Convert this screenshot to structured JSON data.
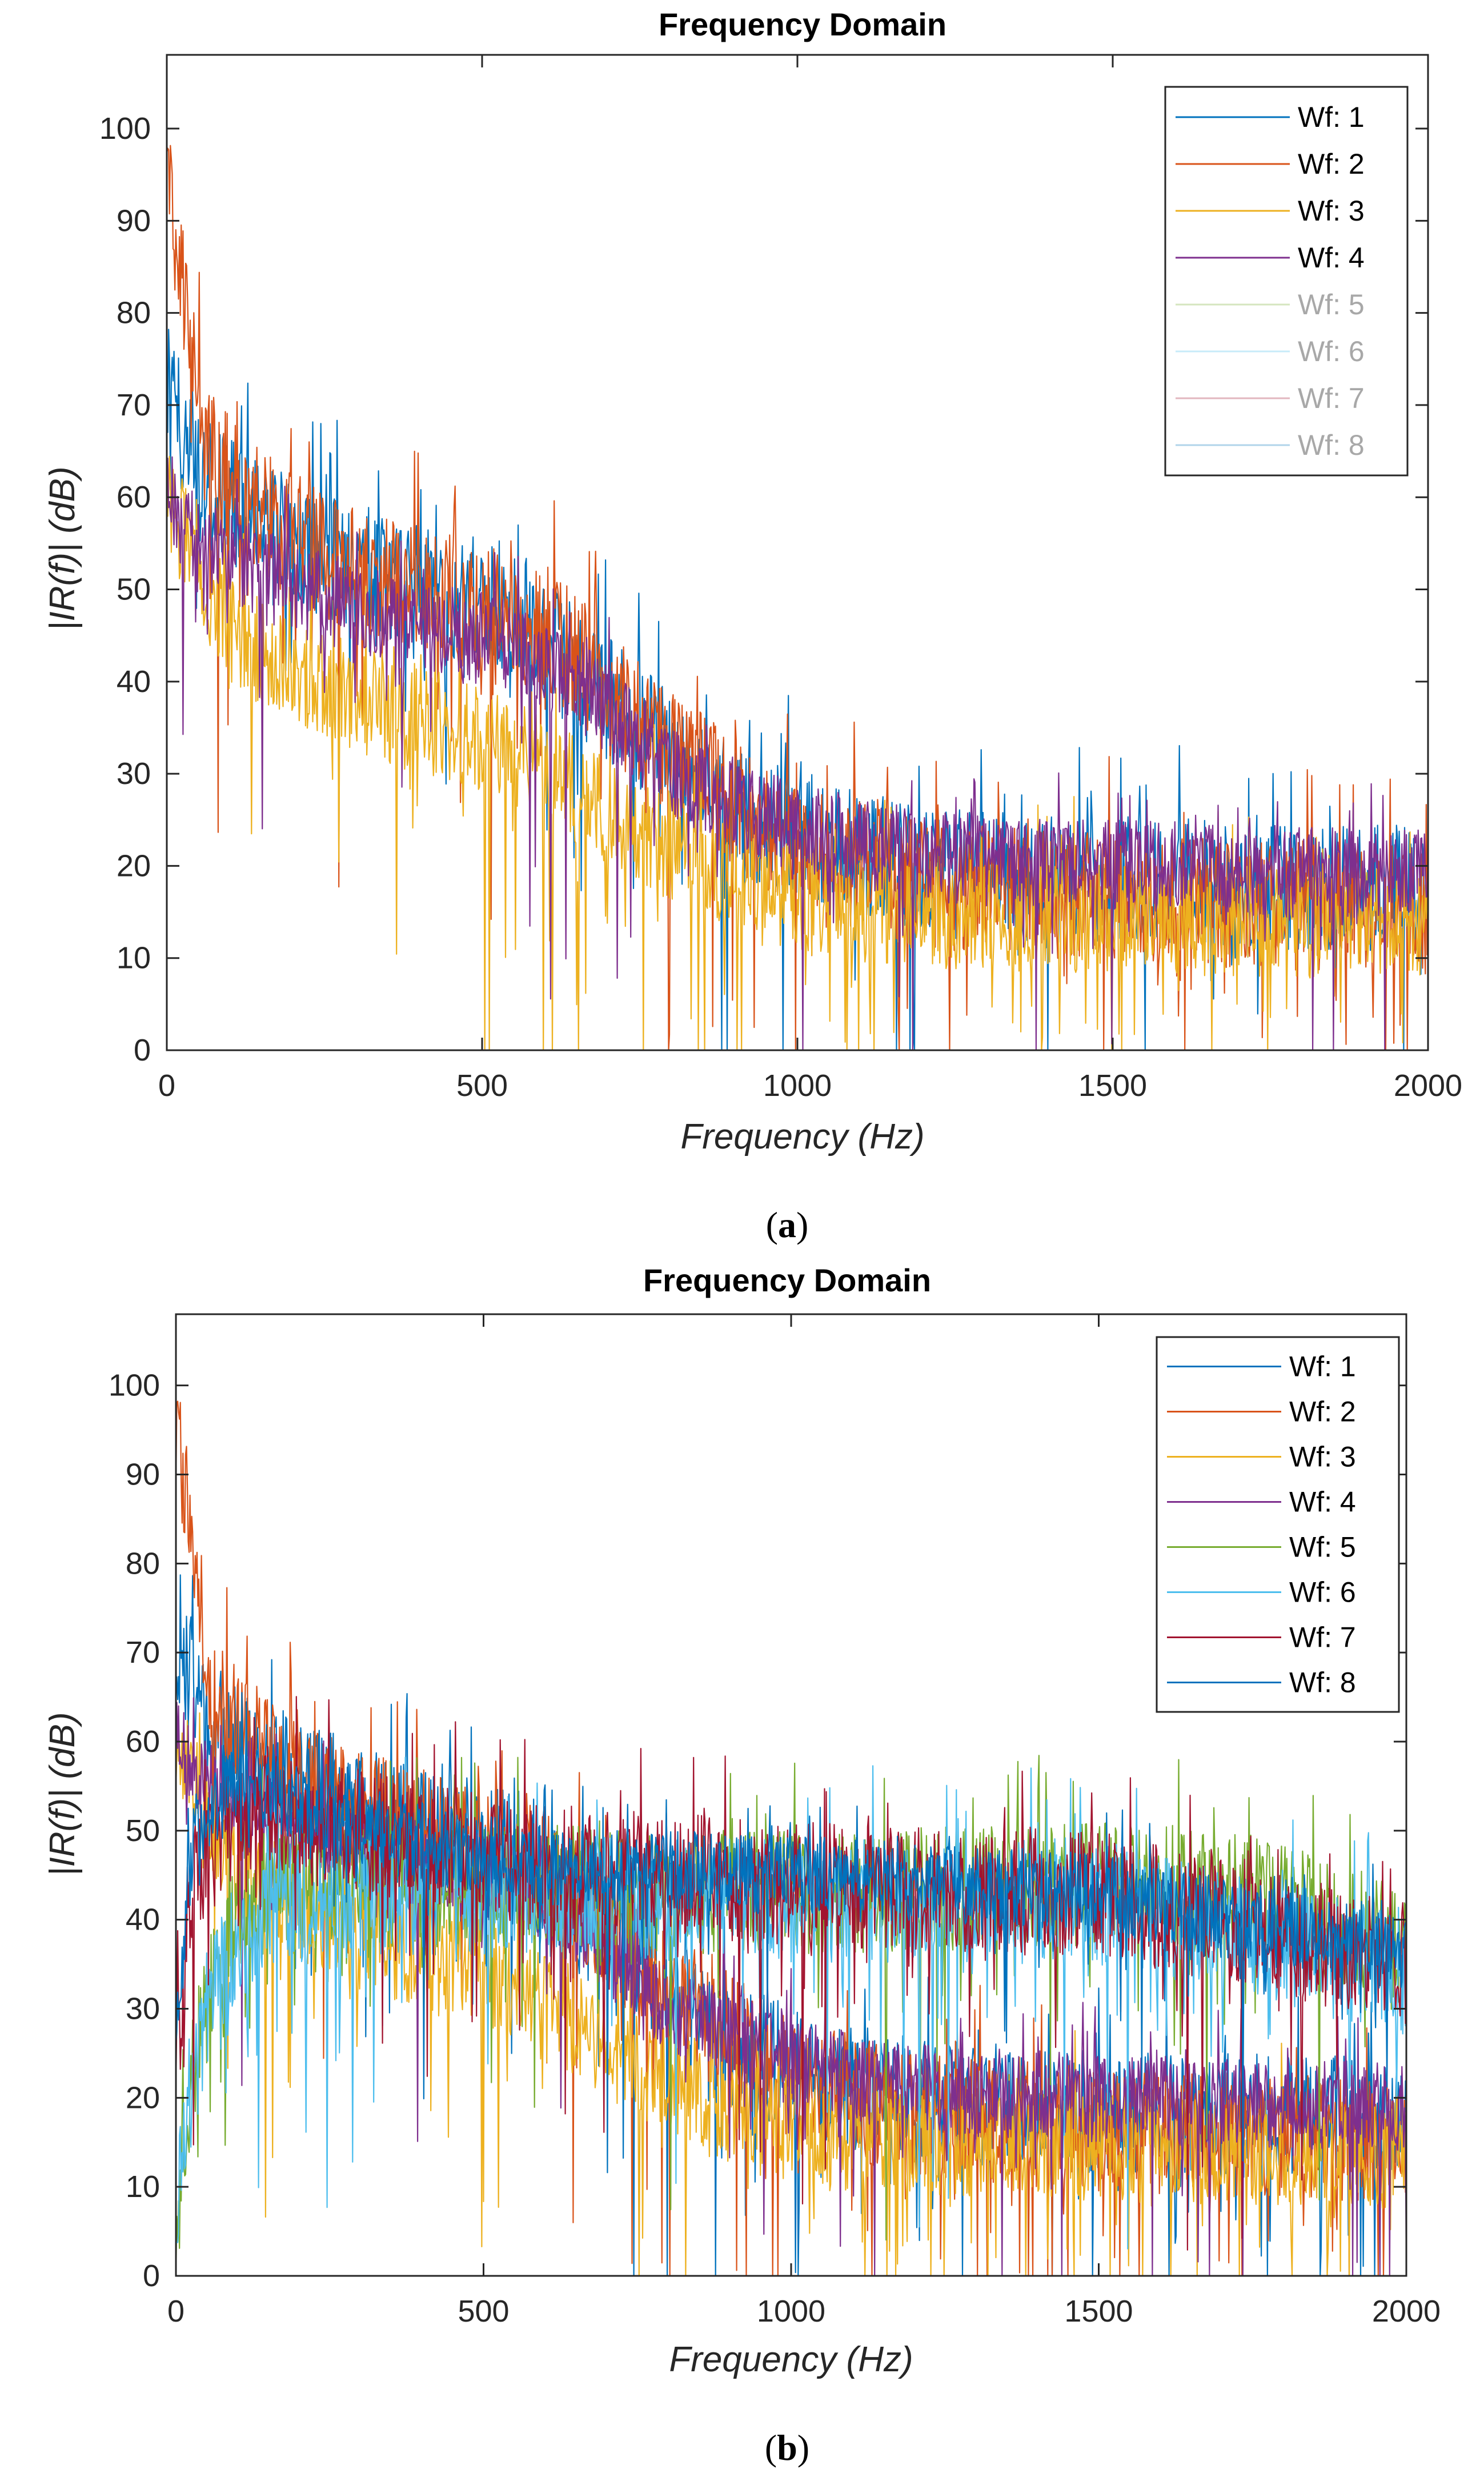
{
  "chart_data": [
    {
      "id": "a",
      "type": "line",
      "title": "Frequency Domain",
      "xlabel": "Frequency (Hz)",
      "ylabel": "|IR(f)| (dB)",
      "xlim": [
        0,
        2000
      ],
      "ylim": [
        0,
        108
      ],
      "xticks": [
        0,
        500,
        1000,
        1500,
        2000
      ],
      "yticks": [
        0,
        10,
        20,
        30,
        40,
        50,
        60,
        70,
        80,
        90,
        100
      ],
      "caption_open": "(",
      "caption_letter": "a",
      "caption_close": ")",
      "legend_position": "top-right",
      "series": [
        {
          "name": "Wf: 1",
          "color": "#0072BD",
          "visible": true,
          "profile": [
            [
              0,
              72
            ],
            [
              50,
              62
            ],
            [
              200,
              55
            ],
            [
              400,
              50
            ],
            [
              550,
              48
            ],
            [
              700,
              38
            ],
            [
              900,
              26
            ],
            [
              1100,
              21
            ],
            [
              1300,
              19
            ],
            [
              1500,
              18.5
            ],
            [
              2000,
              17.5
            ]
          ],
          "noise": 14,
          "dips": 0.02,
          "lastDraw": false
        },
        {
          "name": "Wf: 2",
          "color": "#D95319",
          "visible": true,
          "profile": [
            [
              0,
              95
            ],
            [
              30,
              80
            ],
            [
              60,
              65
            ],
            [
              150,
              58
            ],
            [
              300,
              52
            ],
            [
              500,
              48
            ],
            [
              600,
              46
            ],
            [
              800,
              32
            ],
            [
              1000,
              22
            ],
            [
              1200,
              18
            ],
            [
              1500,
              16.5
            ],
            [
              2000,
              15
            ]
          ],
          "noise": 14,
          "dips": 0.02,
          "lastDraw": false
        },
        {
          "name": "Wf: 3",
          "color": "#EDB120",
          "visible": true,
          "profile": [
            [
              0,
              60
            ],
            [
              100,
              45
            ],
            [
              300,
              38
            ],
            [
              500,
              34
            ],
            [
              700,
              26
            ],
            [
              900,
              18
            ],
            [
              1100,
              15
            ],
            [
              1400,
              14.5
            ],
            [
              2000,
              13.5
            ]
          ],
          "noise": 12,
          "dips": 0.025,
          "lastDraw": false
        },
        {
          "name": "Wf: 4",
          "color": "#7E2F8E",
          "visible": true,
          "profile": [
            [
              0,
              60
            ],
            [
              50,
              55
            ],
            [
              200,
              50
            ],
            [
              400,
              46
            ],
            [
              550,
              44
            ],
            [
              650,
              40
            ],
            [
              800,
              30
            ],
            [
              1000,
              24
            ],
            [
              1200,
              21
            ],
            [
              1500,
              20
            ],
            [
              2000,
              19
            ]
          ],
          "noise": 10,
          "dips": 0.015,
          "lastDraw": true
        },
        {
          "name": "Wf: 5",
          "color": "#77AC30",
          "visible": false,
          "profile": [],
          "noise": 0,
          "dips": 0,
          "lastDraw": false
        },
        {
          "name": "Wf: 6",
          "color": "#4DBEEE",
          "visible": false,
          "profile": [],
          "noise": 0,
          "dips": 0,
          "lastDraw": false
        },
        {
          "name": "Wf: 7",
          "color": "#A2142F",
          "visible": false,
          "profile": [],
          "noise": 0,
          "dips": 0,
          "lastDraw": false
        },
        {
          "name": "Wf: 8",
          "color": "#0072BD",
          "visible": false,
          "profile": [],
          "noise": 0,
          "dips": 0,
          "lastDraw": false
        }
      ]
    },
    {
      "id": "b",
      "type": "line",
      "title": "Frequency Domain",
      "xlabel": "Frequency (Hz)",
      "ylabel": "|IR(f)| (dB)",
      "xlim": [
        0,
        2000
      ],
      "ylim": [
        0,
        108
      ],
      "xticks": [
        0,
        500,
        1000,
        1500,
        2000
      ],
      "yticks": [
        0,
        10,
        20,
        30,
        40,
        50,
        60,
        70,
        80,
        90,
        100
      ],
      "caption_open": "(",
      "caption_letter": "b",
      "caption_close": ")",
      "legend_position": "top-right",
      "series": [
        {
          "name": "Wf: 1",
          "color": "#0072BD",
          "visible": true,
          "profile": [
            [
              0,
              72
            ],
            [
              50,
              62
            ],
            [
              200,
              55
            ],
            [
              400,
              50
            ],
            [
              550,
              48
            ],
            [
              700,
              38
            ],
            [
              900,
              26
            ],
            [
              1100,
              21
            ],
            [
              1300,
              19
            ],
            [
              1500,
              18.5
            ],
            [
              2000,
              17.5
            ]
          ],
          "noise": 14,
          "dips": 0.02,
          "lastDraw": false
        },
        {
          "name": "Wf: 2",
          "color": "#D95319",
          "visible": true,
          "profile": [
            [
              0,
              95
            ],
            [
              30,
              80
            ],
            [
              60,
              65
            ],
            [
              150,
              58
            ],
            [
              300,
              52
            ],
            [
              500,
              48
            ],
            [
              600,
              46
            ],
            [
              800,
              32
            ],
            [
              1000,
              22
            ],
            [
              1200,
              18
            ],
            [
              1500,
              16.5
            ],
            [
              2000,
              15
            ]
          ],
          "noise": 14,
          "dips": 0.02,
          "lastDraw": false
        },
        {
          "name": "Wf: 3",
          "color": "#EDB120",
          "visible": true,
          "profile": [
            [
              0,
              60
            ],
            [
              100,
              45
            ],
            [
              300,
              38
            ],
            [
              500,
              34
            ],
            [
              700,
              26
            ],
            [
              900,
              18
            ],
            [
              1100,
              15
            ],
            [
              1400,
              14.5
            ],
            [
              2000,
              13.5
            ]
          ],
          "noise": 12,
          "dips": 0.025,
          "lastDraw": false
        },
        {
          "name": "Wf: 4",
          "color": "#7E2F8E",
          "visible": true,
          "profile": [
            [
              0,
              60
            ],
            [
              50,
              55
            ],
            [
              200,
              50
            ],
            [
              400,
              46
            ],
            [
              550,
              44
            ],
            [
              650,
              40
            ],
            [
              800,
              30
            ],
            [
              1000,
              24
            ],
            [
              1200,
              21
            ],
            [
              1500,
              20
            ],
            [
              2000,
              19
            ]
          ],
          "noise": 10,
          "dips": 0.015,
          "lastDraw": false
        },
        {
          "name": "Wf: 5",
          "color": "#77AC30",
          "visible": true,
          "profile": [
            [
              0,
              5
            ],
            [
              20,
              20
            ],
            [
              60,
              35
            ],
            [
              150,
              44
            ],
            [
              400,
              44
            ],
            [
              1000,
              43
            ],
            [
              1500,
              44
            ],
            [
              1800,
              43
            ],
            [
              2000,
              36
            ]
          ],
          "noise": 14,
          "dips": 0.015,
          "lastDraw": false
        },
        {
          "name": "Wf: 6",
          "color": "#4DBEEE",
          "visible": true,
          "profile": [
            [
              0,
              8
            ],
            [
              20,
              20
            ],
            [
              60,
              33
            ],
            [
              150,
              42
            ],
            [
              400,
              43
            ],
            [
              1000,
              42
            ],
            [
              1500,
              42
            ],
            [
              2000,
              34
            ]
          ],
          "noise": 14,
          "dips": 0.02,
          "lastDraw": false
        },
        {
          "name": "Wf: 7",
          "color": "#A2142F",
          "visible": true,
          "profile": [
            [
              0,
              25
            ],
            [
              30,
              45
            ],
            [
              100,
              52
            ],
            [
              300,
              50
            ],
            [
              600,
              46
            ],
            [
              1000,
              44
            ],
            [
              1500,
              43
            ],
            [
              2000,
              35
            ]
          ],
          "noise": 14,
          "dips": 0.015,
          "lastDraw": false
        },
        {
          "name": "Wf: 8",
          "color": "#0072BD",
          "visible": true,
          "profile": [
            [
              0,
              28
            ],
            [
              30,
              50
            ],
            [
              100,
              56
            ],
            [
              300,
              50
            ],
            [
              600,
              46
            ],
            [
              1000,
              45
            ],
            [
              1500,
              43
            ],
            [
              2000,
              36
            ]
          ],
          "noise": 9,
          "dips": 0.008,
          "lastDraw": true
        }
      ]
    }
  ]
}
